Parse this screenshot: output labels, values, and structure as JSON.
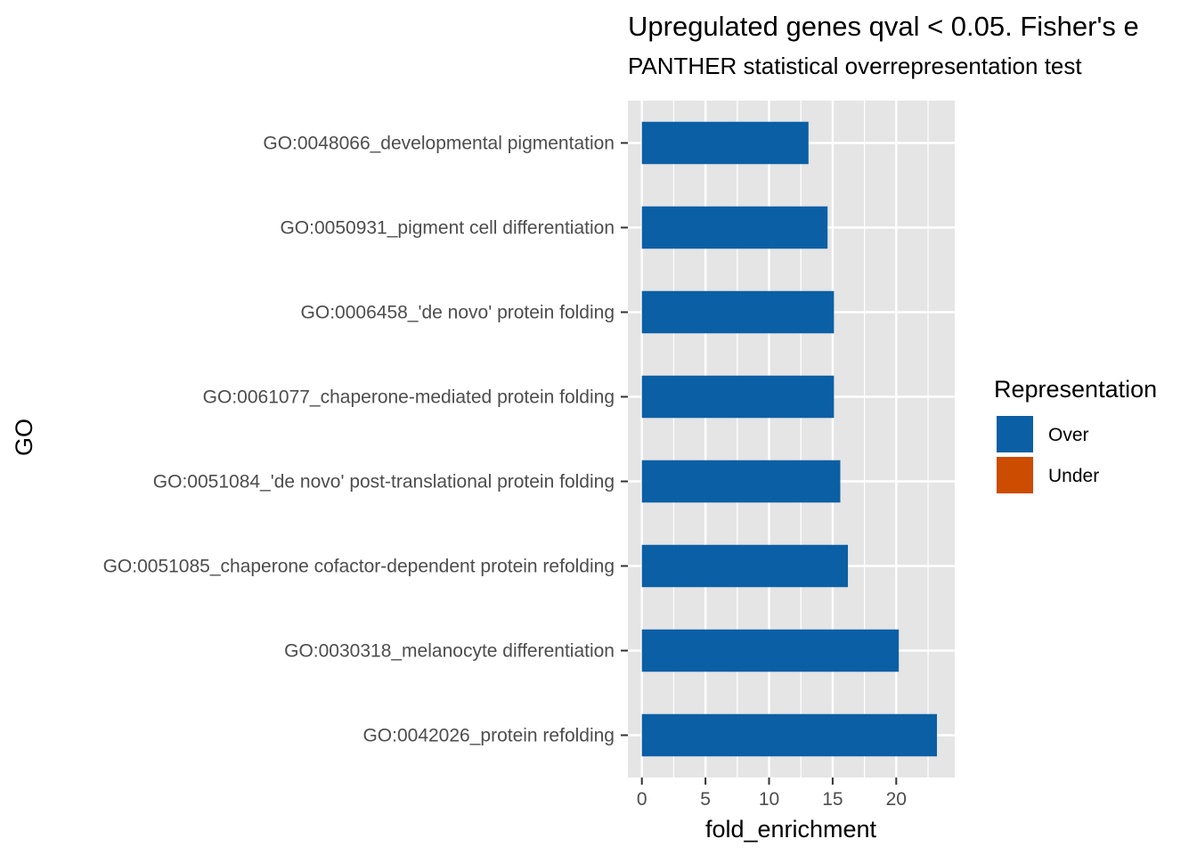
{
  "chart_data": {
    "type": "bar",
    "orientation": "horizontal",
    "title": "Upregulated genes qval < 0.05. Fisher's e",
    "subtitle": "PANTHER statistical overrepresentation test",
    "xlabel": "fold_enrichment",
    "ylabel": "GO",
    "xlim": [
      -1.1,
      24.6
    ],
    "xticks": [
      0,
      5,
      10,
      15,
      20
    ],
    "grid": true,
    "categories": [
      "GO:0048066_developmental pigmentation",
      "GO:0050931_pigment cell differentiation",
      "GO:0006458_'de novo' protein folding",
      "GO:0061077_chaperone-mediated protein folding",
      "GO:0051084_'de novo' post-translational protein folding",
      "GO:0051085_chaperone cofactor-dependent protein refolding",
      "GO:0030318_melanocyte differentiation",
      "GO:0042026_protein refolding"
    ],
    "values": [
      13.1,
      14.6,
      15.1,
      15.1,
      15.6,
      16.2,
      20.2,
      23.2
    ],
    "groups": [
      "Over",
      "Over",
      "Over",
      "Over",
      "Over",
      "Over",
      "Over",
      "Over"
    ],
    "legend": {
      "title": "Representation",
      "position": "right",
      "entries": [
        {
          "name": "Over",
          "color": "#0b5fa5"
        },
        {
          "name": "Under",
          "color": "#cc4c02"
        }
      ]
    },
    "panel_background": "#e5e5e5",
    "grid_color": "#ffffff"
  }
}
